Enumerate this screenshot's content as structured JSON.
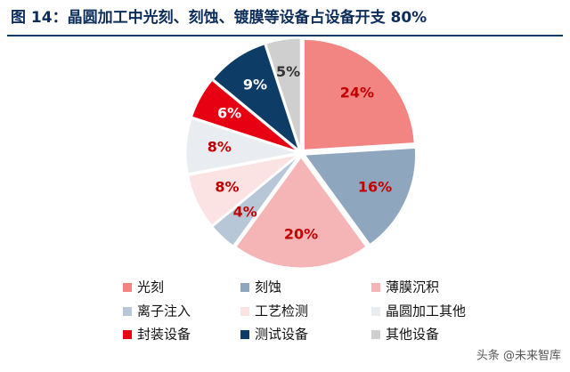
{
  "chart_data": {
    "type": "pie",
    "title": "图 14：晶圆加工中光刻、刻蚀、镀膜等设备占设备开支 80%",
    "categories": [
      "光刻",
      "刻蚀",
      "薄膜沉积",
      "离子注入",
      "工艺检测",
      "晶圆加工其他",
      "封装设备",
      "测试设备",
      "其他设备"
    ],
    "values": [
      24,
      16,
      20,
      4,
      8,
      8,
      6,
      9,
      5
    ],
    "value_labels": [
      "24%",
      "16%",
      "20%",
      "4%",
      "8%",
      "8%",
      "6%",
      "9%",
      "5%"
    ],
    "colors": [
      "#f28482",
      "#8ea7bf",
      "#f5b5b7",
      "#b7c7d8",
      "#fce3e3",
      "#e9edf1",
      "#e60012",
      "#0d3c66",
      "#cfcfcf"
    ],
    "legend": "bottom",
    "watermark": "头条 @未来智库"
  }
}
